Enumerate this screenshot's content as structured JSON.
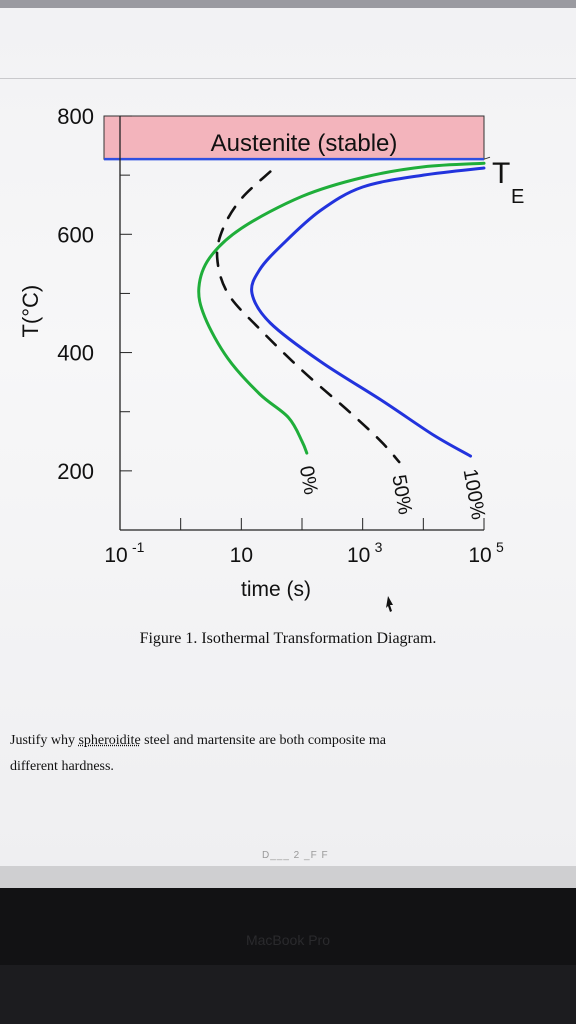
{
  "chart_data": {
    "type": "line",
    "xlabel": "time (s)",
    "ylabel": "T(°C)",
    "x_scale": "log",
    "xlim": [
      0.1,
      100000
    ],
    "ylim": [
      100,
      800
    ],
    "x_ticks": [
      {
        "value": 0.1,
        "base": "10",
        "exp": "-1"
      },
      {
        "value": 10,
        "base": "10",
        "exp": ""
      },
      {
        "value": 1000,
        "base": "10",
        "exp": "3"
      },
      {
        "value": 100000,
        "base": "10",
        "exp": "5"
      }
    ],
    "y_ticks": [
      800,
      600,
      400,
      200
    ],
    "regions": [
      {
        "label": "Austenite (stable)",
        "y_from": 727,
        "y_to": 800,
        "color": "#f3b4bc"
      }
    ],
    "reference_lines": [
      {
        "label": "T",
        "sub": "E",
        "y": 727,
        "color": "#2f4fe0"
      }
    ],
    "series": [
      {
        "name": "0%",
        "color": "#1fae3a",
        "dash": false,
        "points": [
          [
            100000,
            720
          ],
          [
            10000,
            714
          ],
          [
            1000,
            696
          ],
          [
            100,
            664
          ],
          [
            10,
            610
          ],
          [
            3,
            560
          ],
          [
            2,
            510
          ],
          [
            2.5,
            460
          ],
          [
            6,
            390
          ],
          [
            20,
            330
          ],
          [
            60,
            290
          ],
          [
            100,
            250
          ],
          [
            120,
            230
          ]
        ]
      },
      {
        "name": "50%",
        "color": "#111111",
        "dash": true,
        "points": [
          [
            30,
            706
          ],
          [
            10,
            660
          ],
          [
            5,
            610
          ],
          [
            4,
            560
          ],
          [
            6,
            500
          ],
          [
            20,
            440
          ],
          [
            100,
            370
          ],
          [
            600,
            300
          ],
          [
            2000,
            250
          ],
          [
            4000,
            215
          ]
        ]
      },
      {
        "name": "100%",
        "color": "#2233dd",
        "dash": false,
        "points": [
          [
            100000,
            712
          ],
          [
            10000,
            700
          ],
          [
            1000,
            680
          ],
          [
            200,
            640
          ],
          [
            50,
            585
          ],
          [
            20,
            540
          ],
          [
            15,
            500
          ],
          [
            30,
            450
          ],
          [
            200,
            385
          ],
          [
            2000,
            320
          ],
          [
            15000,
            260
          ],
          [
            60000,
            225
          ]
        ]
      }
    ]
  },
  "figure": {
    "caption": "Figure 1. Isothermal Transformation Diagram."
  },
  "question": {
    "line1_before": "Justify why ",
    "line1_word": "spheroidite",
    "line1_after": " steel and martensite are both composite ma",
    "line2": "different hardness."
  },
  "footer": {
    "page_fragment": "D___ 2 _F F",
    "laptop_brand": "MacBook Pro"
  },
  "colors": {
    "austenite_fill": "#f3b4bc",
    "green": "#1fae3a",
    "blue": "#2233dd",
    "black": "#111111"
  }
}
